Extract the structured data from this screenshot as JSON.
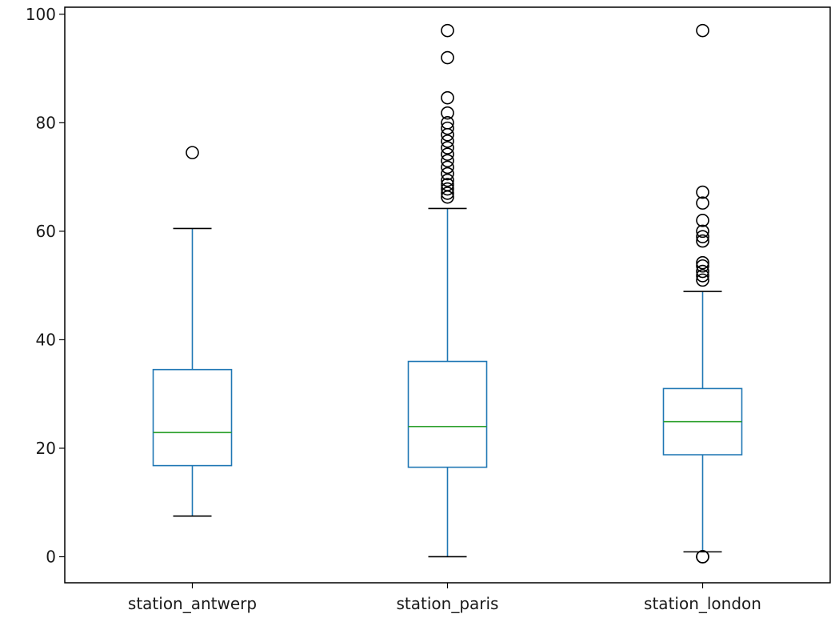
{
  "chart_data": {
    "type": "box",
    "title": "",
    "xlabel": "",
    "ylabel": "",
    "ylim": [
      -4.8,
      101.3
    ],
    "yticks": [
      0,
      20,
      40,
      60,
      80,
      100
    ],
    "grid": false,
    "colors": {
      "box": "#1f77b4",
      "median": "#2ca02c",
      "cap": "#000000",
      "flier": "#000000"
    },
    "categories": [
      "station_antwerp",
      "station_paris",
      "station_london"
    ],
    "boxes": [
      {
        "name": "station_antwerp",
        "whisker_low": 7.5,
        "q1": 16.8,
        "median": 22.9,
        "q3": 34.5,
        "whisker_high": 60.5,
        "outliers": [
          74.5
        ]
      },
      {
        "name": "station_paris",
        "whisker_low": 0.0,
        "q1": 16.5,
        "median": 24.0,
        "q3": 36.0,
        "whisker_high": 64.2,
        "outliers": [
          66.3,
          67.0,
          67.8,
          68.6,
          69.4,
          70.6,
          71.8,
          73.0,
          74.2,
          75.4,
          76.6,
          77.8,
          79.0,
          80.0,
          81.8,
          84.6,
          92.0,
          97.0
        ]
      },
      {
        "name": "station_london",
        "whisker_low": 0.9,
        "q1": 18.8,
        "median": 24.9,
        "q3": 31.0,
        "whisker_high": 48.9,
        "outliers": [
          0.0,
          0.0,
          51.0,
          51.8,
          52.6,
          53.6,
          54.2,
          58.2,
          59.0,
          60.0,
          62.0,
          65.2,
          67.2,
          97.0
        ]
      }
    ]
  }
}
